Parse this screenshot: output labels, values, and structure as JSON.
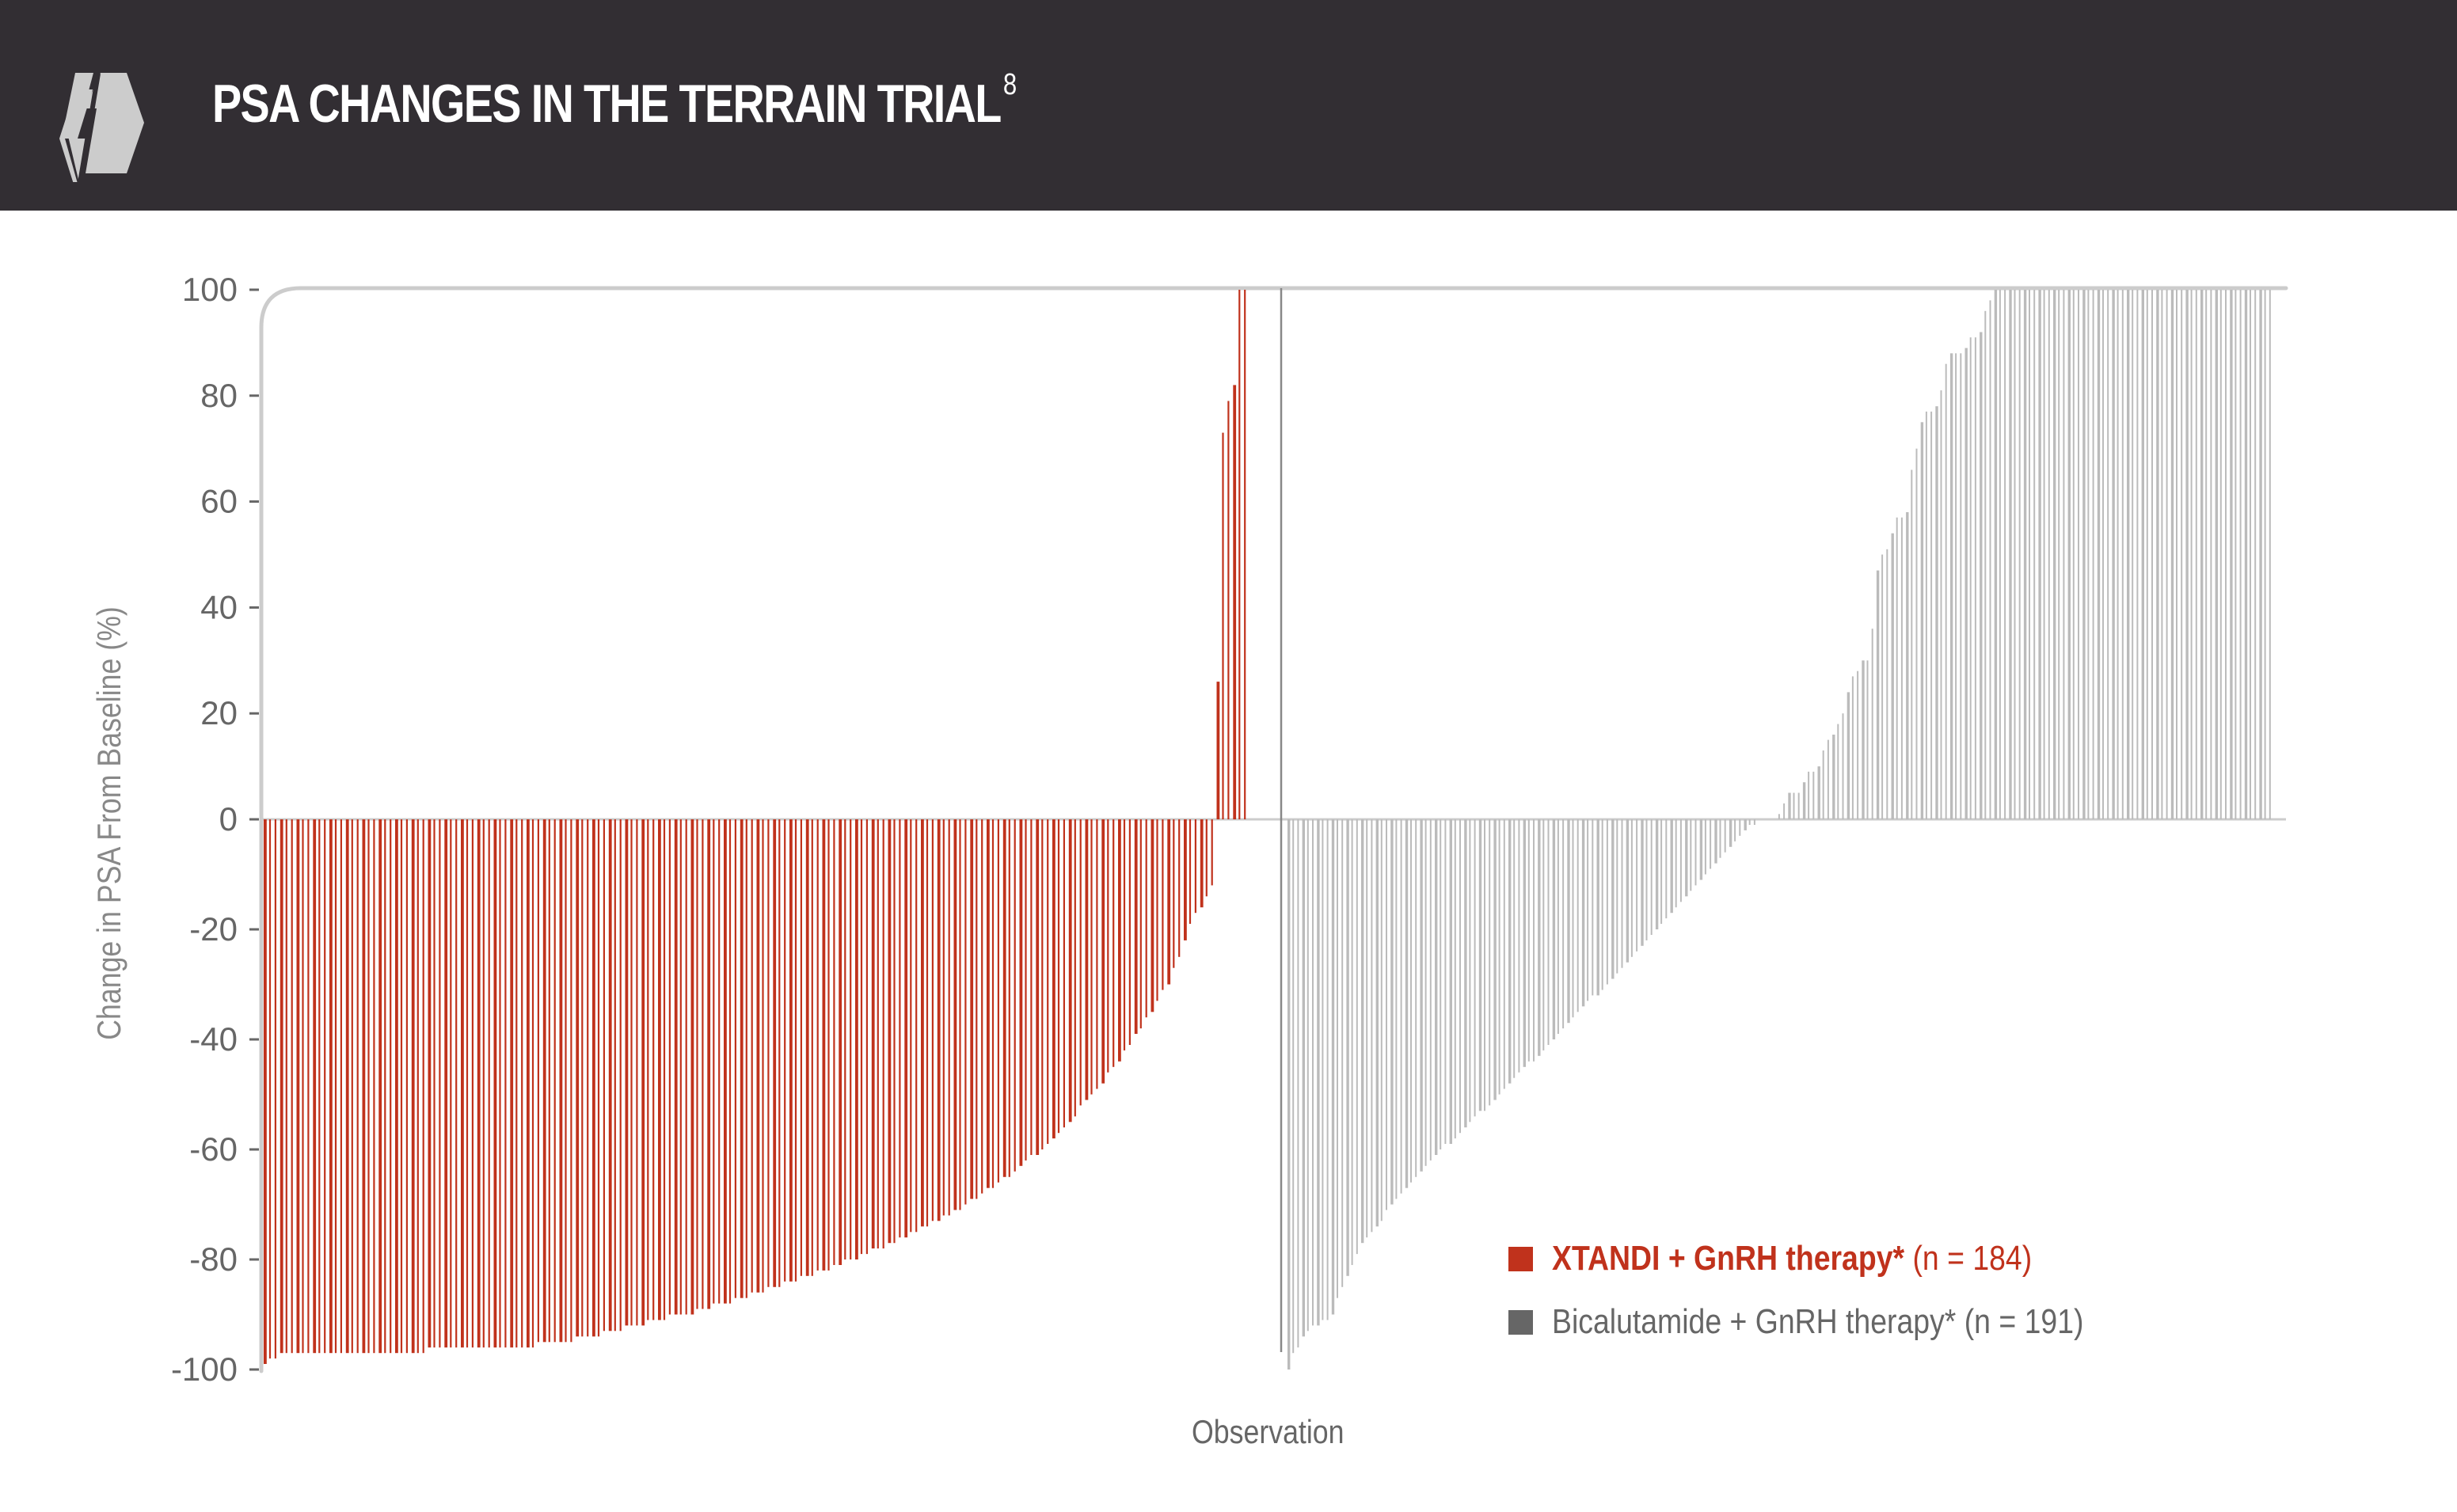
{
  "header": {
    "title": "PSA CHANGES IN THE TERRAIN TRIAL",
    "superscript": "8",
    "icon": "lightning-bolt-hexagon-icon",
    "background": "#322e33"
  },
  "legend": {
    "items": [
      {
        "label_bold": "XTANDI + GnRH therapy*",
        "label_rest": " (n = 184)",
        "color": "#c0321c"
      },
      {
        "label_bold": "",
        "label_rest": "Bicalutamide + GnRH therapy* (n = 191)",
        "color": "#666666"
      }
    ]
  },
  "axes": {
    "ylabel": "Change in PSA From Baseline (%)",
    "xlabel": "Observation",
    "yticks": [
      "100",
      "80",
      "60",
      "40",
      "20",
      "0",
      "-20",
      "-40",
      "-60",
      "-80",
      "-100"
    ]
  },
  "chart_data": {
    "type": "bar",
    "title": "PSA CHANGES IN THE TERRAIN TRIAL",
    "xlabel": "Observation",
    "ylabel": "Change in PSA From Baseline (%)",
    "ylim": [
      -100,
      100
    ],
    "yticks": [
      100,
      80,
      60,
      40,
      20,
      0,
      -20,
      -40,
      -60,
      -80,
      -100
    ],
    "grid": false,
    "legend_position": "lower right",
    "series": [
      {
        "name": "XTANDI + GnRH therapy* (n = 184)",
        "color": "#c0321c",
        "n": 184,
        "values": [
          -99,
          -98,
          -98,
          -97,
          -97,
          -97,
          -97,
          -97,
          -97,
          -97,
          -97,
          -97,
          -97,
          -97,
          -97,
          -97,
          -97,
          -97,
          -97,
          -97,
          -97,
          -97,
          -97,
          -97,
          -97,
          -97,
          -97,
          -97,
          -97,
          -97,
          -96,
          -96,
          -96,
          -96,
          -96,
          -96,
          -96,
          -96,
          -96,
          -96,
          -96,
          -96,
          -96,
          -96,
          -96,
          -96,
          -96,
          -96,
          -96,
          -96,
          -95,
          -95,
          -95,
          -95,
          -95,
          -95,
          -95,
          -94,
          -94,
          -94,
          -94,
          -94,
          -93,
          -93,
          -93,
          -93,
          -92,
          -92,
          -92,
          -92,
          -91,
          -91,
          -91,
          -91,
          -90,
          -90,
          -90,
          -90,
          -90,
          -89,
          -89,
          -89,
          -88,
          -88,
          -88,
          -88,
          -87,
          -87,
          -87,
          -86,
          -86,
          -86,
          -85,
          -85,
          -85,
          -84,
          -84,
          -84,
          -83,
          -83,
          -83,
          -82,
          -82,
          -82,
          -81,
          -81,
          -80,
          -80,
          -80,
          -79,
          -79,
          -78,
          -78,
          -78,
          -77,
          -77,
          -76,
          -76,
          -75,
          -75,
          -74,
          -74,
          -73,
          -73,
          -72,
          -72,
          -71,
          -71,
          -70,
          -69,
          -69,
          -68,
          -67,
          -67,
          -66,
          -65,
          -65,
          -64,
          -63,
          -62,
          -61,
          -61,
          -60,
          -59,
          -58,
          -57,
          -56,
          -55,
          -54,
          -52,
          -51,
          -50,
          -49,
          -48,
          -46,
          -45,
          -44,
          -42,
          -41,
          -39,
          -38,
          -36,
          -35,
          -33,
          -31,
          -30,
          -27,
          -25,
          -22,
          -19,
          -17,
          -16,
          -14,
          -12,
          26,
          73,
          79,
          82,
          100,
          100
        ]
      },
      {
        "name": "Bicalutamide + GnRH therapy* (n = 191)",
        "color": "#bbbbbb",
        "legend_color": "#666666",
        "n": 191,
        "values": [
          -100,
          -97,
          -96,
          -94,
          -93,
          -92,
          -92,
          -91,
          -91,
          -90,
          -87,
          -85,
          -83,
          -81,
          -79,
          -77,
          -76,
          -75,
          -74,
          -73,
          -71,
          -70,
          -69,
          -68,
          -67,
          -66,
          -65,
          -64,
          -63,
          -62,
          -61,
          -60,
          -59,
          -59,
          -58,
          -57,
          -56,
          -55,
          -54,
          -53,
          -53,
          -52,
          -51,
          -50,
          -49,
          -48,
          -47,
          -46,
          -45,
          -44,
          -44,
          -43,
          -42,
          -41,
          -40,
          -39,
          -38,
          -37,
          -36,
          -35,
          -34,
          -33,
          -32,
          -32,
          -31,
          -30,
          -29,
          -28,
          -27,
          -26,
          -25,
          -24,
          -23,
          -22,
          -21,
          -20,
          -19,
          -18,
          -17,
          -16,
          -15,
          -14,
          -13,
          -12,
          -11,
          -10,
          -9,
          -8,
          -7,
          -6,
          -5,
          -4,
          -3,
          -2,
          -1,
          -1,
          0,
          0,
          0,
          0,
          1,
          3,
          5,
          5,
          5,
          7,
          9,
          9,
          10,
          13,
          15,
          16,
          18,
          20,
          24,
          27,
          28,
          30,
          30,
          36,
          47,
          50,
          51,
          54,
          57,
          57,
          58,
          66,
          70,
          75,
          77,
          77,
          78,
          81,
          86,
          88,
          88,
          88,
          89,
          91,
          91,
          92,
          96,
          98,
          100,
          100,
          100,
          100,
          100,
          100,
          100,
          100,
          100,
          100,
          100,
          100,
          100,
          100,
          100,
          100,
          100,
          100,
          100,
          100,
          100,
          100,
          100,
          100,
          100,
          100,
          100,
          100,
          100,
          100,
          100,
          100,
          100,
          100,
          100,
          100,
          100,
          100,
          100,
          100,
          100,
          100,
          100,
          100,
          100,
          100,
          100,
          100,
          100,
          100,
          100,
          100,
          100,
          100,
          100,
          100,
          100
        ]
      }
    ]
  }
}
